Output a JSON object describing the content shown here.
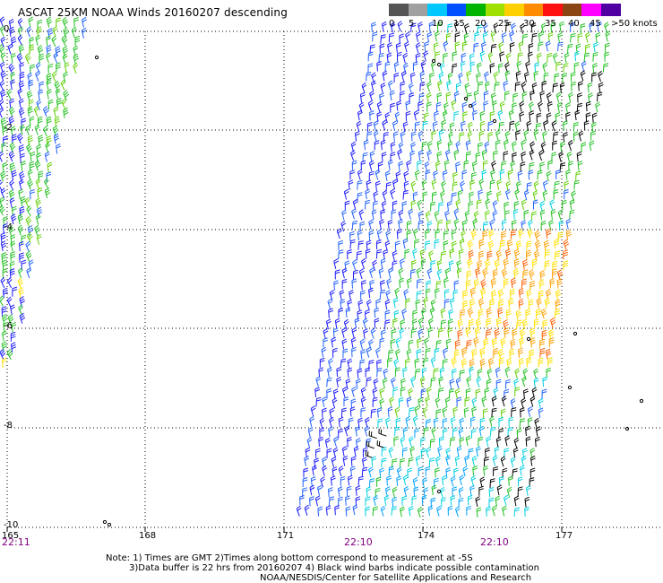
{
  "title": "ASCAT 25KM NOAA Winds 20160207 descending",
  "scale": {
    "colors": [
      "#555555",
      "#a0a0a0",
      "#00c8ff",
      "#0050ff",
      "#00b400",
      "#a0e000",
      "#ffd000",
      "#ff8c00",
      "#ff1010",
      "#8b4513",
      "#ff00ff",
      "#5000a0"
    ],
    "labels": [
      "0",
      "5",
      "10",
      "15",
      "20",
      "25",
      "30",
      "35",
      "40",
      "45",
      ">50 knots"
    ]
  },
  "longitude_labels": [
    "165",
    "168",
    "171",
    "174",
    "177"
  ],
  "latitude_labels": [
    "0",
    "-2",
    "-4",
    "-6",
    "-8",
    "-10"
  ],
  "time_labels": [
    "22:11",
    "22:10",
    "22:10"
  ],
  "notes": [
    "Note: 1) Times are GMT 2)Times along bottom correspond to measurement at -5S",
    "3)Data buffer is 22 hrs from 20160207 4) Black wind barbs indicate possible contamination",
    "NOAA/NESDIS/Center for Satellite Applications and Research"
  ],
  "colors": {
    "grid": "#000000",
    "barb_colors": [
      "#1a1aff",
      "#2060ff",
      "#00a0ff",
      "#00d0e0",
      "#20c020",
      "#60d000",
      "#ffe000",
      "#ffa000",
      "#ff6000",
      "#000000"
    ]
  }
}
